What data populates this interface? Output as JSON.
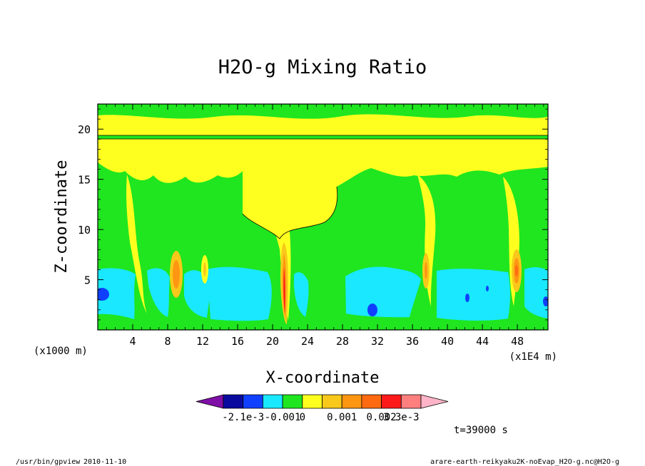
{
  "chart_data": {
    "type": "heatmap",
    "title": "H2O-g Mixing Ratio",
    "xlabel": "X-coordinate",
    "ylabel": "Z-coordinate",
    "x_unit_left": "(x1000 m)",
    "x_unit_right": "(x1E4 m)",
    "x_ticks": [
      "4",
      "8",
      "12",
      "16",
      "20",
      "24",
      "28",
      "32",
      "36",
      "40",
      "44",
      "48"
    ],
    "y_ticks": [
      "5",
      "10",
      "15",
      "20"
    ],
    "xlim": [
      0,
      51.5
    ],
    "ylim": [
      0,
      22.5
    ],
    "colorbar": {
      "labels": [
        "-2.1e-3",
        "-0.001",
        "0",
        "0.001",
        "0.002",
        "3.3e-3"
      ],
      "colors": [
        "#7f0fa7",
        "#0a0aa0",
        "#1040ff",
        "#19e8ff",
        "#1fe61f",
        "#ffff1f",
        "#f8c81a",
        "#ff9611",
        "#ff6a11",
        "#ff1a1a",
        "#ff7f7f",
        "#ffb4c8"
      ]
    },
    "regions": [
      {
        "name": "green-background",
        "color": "#1fe61f"
      },
      {
        "name": "yellow-upper",
        "color": "#ffff1f"
      },
      {
        "name": "cyan-lower",
        "color": "#19e8ff"
      },
      {
        "name": "blue-pockets",
        "color": "#1040ff"
      },
      {
        "name": "warm-columns",
        "color": "#ff9611"
      }
    ]
  },
  "time_label": "t=39000 s",
  "footer_left_path": "/usr/bin/gpview",
  "footer_left_date": "2010-11-10",
  "footer_right": "arare-earth-reikyaku2K-noEvap_H2O-g.nc@H2O-g"
}
